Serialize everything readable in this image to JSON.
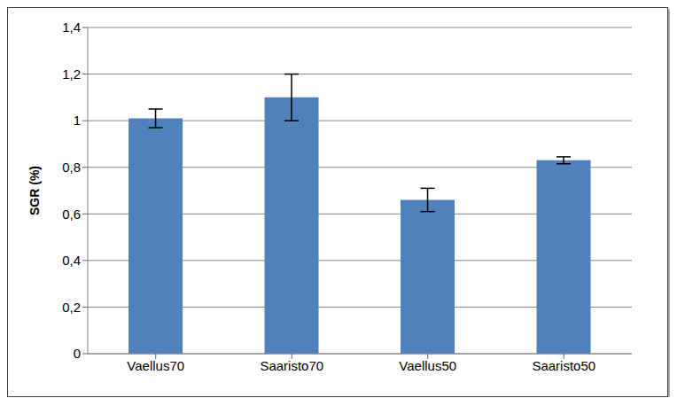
{
  "chart_data": {
    "type": "bar",
    "categories": [
      "Vaellus70",
      "Saaristo70",
      "Vaellus50",
      "Saaristo50"
    ],
    "values": [
      1.01,
      1.1,
      0.66,
      0.83
    ],
    "errors": [
      0.04,
      0.1,
      0.05,
      0.015
    ],
    "color": "#4f81bd",
    "y_label": "SGR (%)",
    "ylim": [
      0,
      1.4
    ],
    "yticks": [
      0,
      {
        "value": 0.2,
        "label": "0,2"
      },
      {
        "value": 0.4,
        "label": "0,4"
      },
      {
        "value": 0.6,
        "label": "0,6"
      },
      {
        "value": 0.8,
        "label": "0,8"
      },
      1,
      {
        "value": 1.2,
        "label": "1,2"
      },
      {
        "value": 1.4,
        "label": "1,4"
      }
    ],
    "grid": true
  }
}
